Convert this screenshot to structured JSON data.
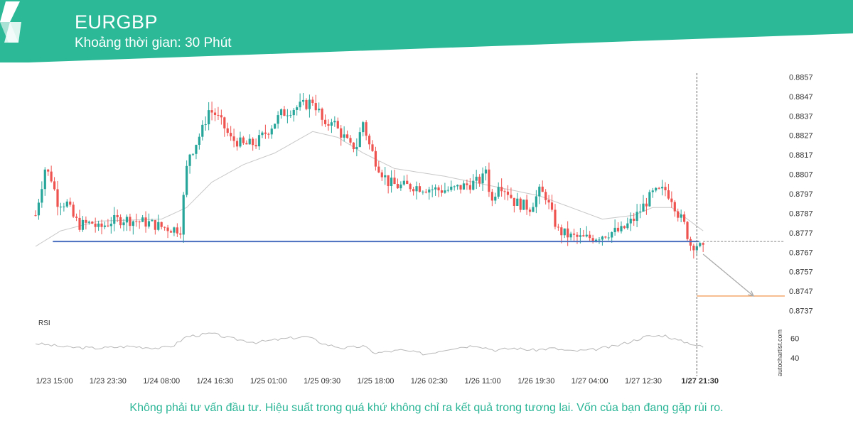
{
  "header": {
    "symbol": "EURGBP",
    "interval_label": "Khoảng thời gian: 30 Phút",
    "brand_color": "#2bb998"
  },
  "disclaimer": "Không phải tư vấn đầu tư. Hiệu suất trong quá khứ không chỉ ra kết quả trong tương lai. Vốn của bạn đang gặp rủi ro.",
  "watermark": "autochartist.com",
  "chart_data": {
    "type": "candlestick",
    "y_ticks": [
      "0.8857",
      "0.8847",
      "0.8837",
      "0.8827",
      "0.8817",
      "0.8807",
      "0.8797",
      "0.8787",
      "0.8777",
      "0.8767",
      "0.8757",
      "0.8747",
      "0.8737"
    ],
    "ylim": [
      0.8735,
      0.8859
    ],
    "x_ticks": [
      {
        "label": "1/23 15:00",
        "index": 6
      },
      {
        "label": "1/23 23:30",
        "index": 23
      },
      {
        "label": "1/24 08:00",
        "index": 40
      },
      {
        "label": "1/24 16:30",
        "index": 57
      },
      {
        "label": "1/25 01:00",
        "index": 74
      },
      {
        "label": "1/25 09:30",
        "index": 91
      },
      {
        "label": "1/25 18:00",
        "index": 108
      },
      {
        "label": "1/26 02:30",
        "index": 125
      },
      {
        "label": "1/26 11:00",
        "index": 142
      },
      {
        "label": "1/26 19:30",
        "index": 159
      },
      {
        "label": "1/27 04:00",
        "index": 176
      },
      {
        "label": "1/27 12:30",
        "index": 193
      },
      {
        "label": "1/27 21:30",
        "index": 211,
        "highlight": true
      }
    ],
    "candles_count": 213,
    "anchors": [
      [
        0,
        0.8786
      ],
      [
        3,
        0.881
      ],
      [
        5,
        0.8805
      ],
      [
        7,
        0.8793
      ],
      [
        10,
        0.8792
      ],
      [
        12,
        0.8785
      ],
      [
        14,
        0.8781
      ],
      [
        18,
        0.8782
      ],
      [
        20,
        0.8779
      ],
      [
        24,
        0.8783
      ],
      [
        28,
        0.8784
      ],
      [
        32,
        0.8783
      ],
      [
        36,
        0.8782
      ],
      [
        40,
        0.878
      ],
      [
        44,
        0.8779
      ],
      [
        46,
        0.8779
      ],
      [
        47,
        0.8795
      ],
      [
        48,
        0.881
      ],
      [
        49,
        0.8818
      ],
      [
        50,
        0.882
      ],
      [
        53,
        0.883
      ],
      [
        55,
        0.884
      ],
      [
        57,
        0.8838
      ],
      [
        60,
        0.8831
      ],
      [
        62,
        0.8825
      ],
      [
        64,
        0.8824
      ],
      [
        66,
        0.8822
      ],
      [
        70,
        0.8823
      ],
      [
        74,
        0.883
      ],
      [
        78,
        0.8838
      ],
      [
        82,
        0.8841
      ],
      [
        86,
        0.8843
      ],
      [
        88,
        0.8845
      ],
      [
        90,
        0.8839
      ],
      [
        92,
        0.883
      ],
      [
        94,
        0.8836
      ],
      [
        96,
        0.883
      ],
      [
        98,
        0.8826
      ],
      [
        100,
        0.8821
      ],
      [
        102,
        0.8822
      ],
      [
        104,
        0.8834
      ],
      [
        106,
        0.8822
      ],
      [
        108,
        0.8814
      ],
      [
        110,
        0.8808
      ],
      [
        112,
        0.8803
      ],
      [
        115,
        0.8801
      ],
      [
        120,
        0.8801
      ],
      [
        124,
        0.88
      ],
      [
        128,
        0.8799
      ],
      [
        132,
        0.8799
      ],
      [
        136,
        0.8801
      ],
      [
        140,
        0.8803
      ],
      [
        142,
        0.8805
      ],
      [
        143,
        0.881
      ],
      [
        144,
        0.88
      ],
      [
        145,
        0.8793
      ],
      [
        147,
        0.8803
      ],
      [
        150,
        0.8798
      ],
      [
        152,
        0.8793
      ],
      [
        155,
        0.8791
      ],
      [
        157,
        0.879
      ],
      [
        160,
        0.8798
      ],
      [
        162,
        0.8796
      ],
      [
        164,
        0.8786
      ],
      [
        166,
        0.8778
      ],
      [
        170,
        0.8775
      ],
      [
        174,
        0.8774
      ],
      [
        178,
        0.8775
      ],
      [
        182,
        0.8777
      ],
      [
        186,
        0.8778
      ],
      [
        190,
        0.8784
      ],
      [
        194,
        0.8793
      ],
      [
        196,
        0.8797
      ],
      [
        200,
        0.8799
      ],
      [
        202,
        0.8795
      ],
      [
        204,
        0.8787
      ],
      [
        206,
        0.8781
      ],
      [
        208,
        0.8771
      ],
      [
        210,
        0.8771
      ],
      [
        212,
        0.8768
      ]
    ],
    "ma_anchors": [
      [
        0,
        0.877
      ],
      [
        8,
        0.8778
      ],
      [
        20,
        0.8783
      ],
      [
        40,
        0.8784
      ],
      [
        48,
        0.879
      ],
      [
        56,
        0.8803
      ],
      [
        66,
        0.8812
      ],
      [
        76,
        0.8818
      ],
      [
        88,
        0.8829
      ],
      [
        96,
        0.8826
      ],
      [
        104,
        0.8818
      ],
      [
        114,
        0.881
      ],
      [
        130,
        0.8806
      ],
      [
        148,
        0.88
      ],
      [
        160,
        0.8796
      ],
      [
        170,
        0.879
      ],
      [
        180,
        0.8784
      ],
      [
        190,
        0.8786
      ],
      [
        196,
        0.879
      ],
      [
        202,
        0.879
      ],
      [
        212,
        0.8778
      ]
    ],
    "support_level": {
      "value": 0.87725,
      "from_index": 10,
      "to_index": 212,
      "color": "#4a6fbf"
    },
    "current_price_line": {
      "value": 0.87725,
      "color": "#888888"
    },
    "projection": {
      "from": [
        212,
        0.8766
      ],
      "to_index": 228,
      "to_value": 0.87445,
      "color": "#aaaaaa"
    },
    "target_level": {
      "value": 0.87445,
      "color": "#ef8a3a"
    },
    "colors": {
      "up": "#26a69a",
      "down": "#ef5350",
      "ma": "#c8c8c8",
      "rsi": "#b8b8b8"
    },
    "rsi": {
      "label": "RSI",
      "ticks": [
        "60",
        "40"
      ],
      "ylim": [
        30,
        75
      ],
      "anchors": [
        [
          0,
          55
        ],
        [
          10,
          51
        ],
        [
          20,
          50
        ],
        [
          30,
          52
        ],
        [
          40,
          50
        ],
        [
          44,
          53
        ],
        [
          48,
          62
        ],
        [
          56,
          65
        ],
        [
          62,
          60
        ],
        [
          70,
          56
        ],
        [
          80,
          60
        ],
        [
          86,
          62
        ],
        [
          92,
          54
        ],
        [
          98,
          50
        ],
        [
          104,
          52
        ],
        [
          108,
          45
        ],
        [
          116,
          48
        ],
        [
          124,
          44
        ],
        [
          132,
          50
        ],
        [
          140,
          53
        ],
        [
          146,
          48
        ],
        [
          152,
          50
        ],
        [
          158,
          48
        ],
        [
          164,
          50
        ],
        [
          170,
          47
        ],
        [
          176,
          48
        ],
        [
          184,
          52
        ],
        [
          190,
          58
        ],
        [
          194,
          62
        ],
        [
          200,
          63
        ],
        [
          204,
          58
        ],
        [
          208,
          55
        ],
        [
          212,
          51
        ]
      ]
    }
  }
}
